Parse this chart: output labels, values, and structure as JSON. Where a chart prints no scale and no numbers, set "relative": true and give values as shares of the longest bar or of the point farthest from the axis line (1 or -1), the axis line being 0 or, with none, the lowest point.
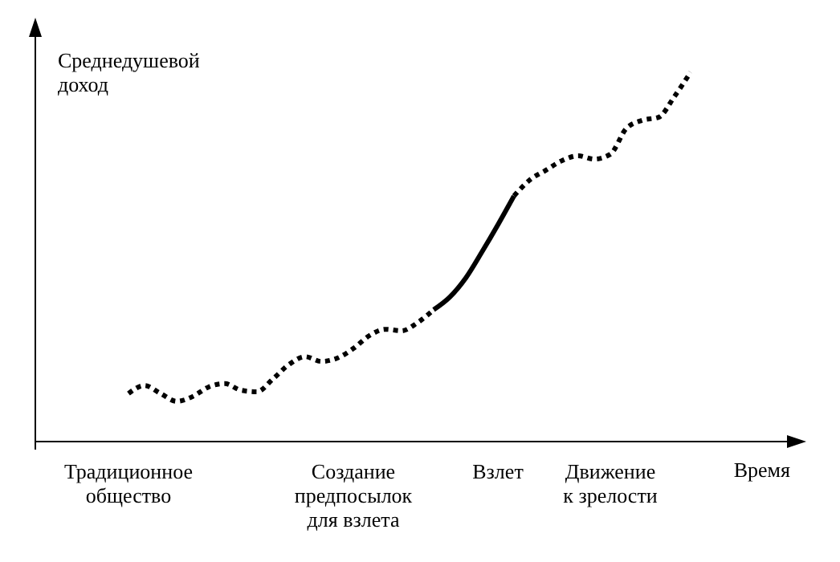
{
  "chart_data": {
    "type": "line",
    "xlabel": "Время",
    "ylabel": "Среднедушевой\nдоход",
    "relative": true,
    "categories": [
      null,
      null,
      null,
      null,
      null,
      "Традиционное\nобщество",
      null,
      null,
      null,
      null,
      null,
      null,
      null,
      null,
      null,
      null,
      null,
      null,
      null,
      "Создание\nпредпосылок\nдля взлета",
      null,
      null,
      null,
      null,
      null,
      null,
      null,
      null,
      "Взлет",
      null,
      null,
      null,
      null,
      null,
      null,
      "Движение\nк зрелости",
      null,
      null,
      null,
      null,
      null,
      null,
      null,
      null,
      null,
      null,
      null
    ],
    "series": [
      {
        "color": "#000000",
        "line_style": "dotted",
        "values": [
          null,
          null,
          null,
          null,
          null,
          0.13,
          0.152,
          0.13,
          0.109,
          0.122,
          0.148,
          0.157,
          0.139,
          0.135,
          0.17,
          0.209,
          0.23,
          0.217,
          0.226,
          0.252,
          0.287,
          0.304,
          0.3,
          0.322,
          0.357,
          null,
          null,
          null,
          null,
          null,
          null,
          null,
          null,
          null,
          null,
          null,
          null,
          null,
          null,
          null,
          null,
          null,
          null,
          null,
          null,
          null,
          null
        ]
      },
      {
        "color": "#000000",
        "line_style": "solid",
        "values": [
          null,
          null,
          null,
          null,
          null,
          null,
          null,
          null,
          null,
          null,
          null,
          null,
          null,
          null,
          null,
          null,
          null,
          null,
          null,
          null,
          null,
          null,
          null,
          null,
          0.357,
          0.391,
          0.443,
          0.513,
          0.587,
          0.665,
          null,
          null,
          null,
          null,
          null,
          null,
          null,
          null,
          null,
          null,
          null,
          null,
          null,
          null,
          null,
          null,
          null
        ]
      },
      {
        "color": "#000000",
        "line_style": "dotted",
        "values": [
          null,
          null,
          null,
          null,
          null,
          null,
          null,
          null,
          null,
          null,
          null,
          null,
          null,
          null,
          null,
          null,
          null,
          null,
          null,
          null,
          null,
          null,
          null,
          null,
          null,
          null,
          null,
          null,
          null,
          0.665,
          0.709,
          0.735,
          0.761,
          0.774,
          0.765,
          0.778,
          0.848,
          0.87,
          0.878,
          0.935,
          1,
          null,
          null,
          null,
          null,
          null,
          null
        ]
      }
    ]
  }
}
